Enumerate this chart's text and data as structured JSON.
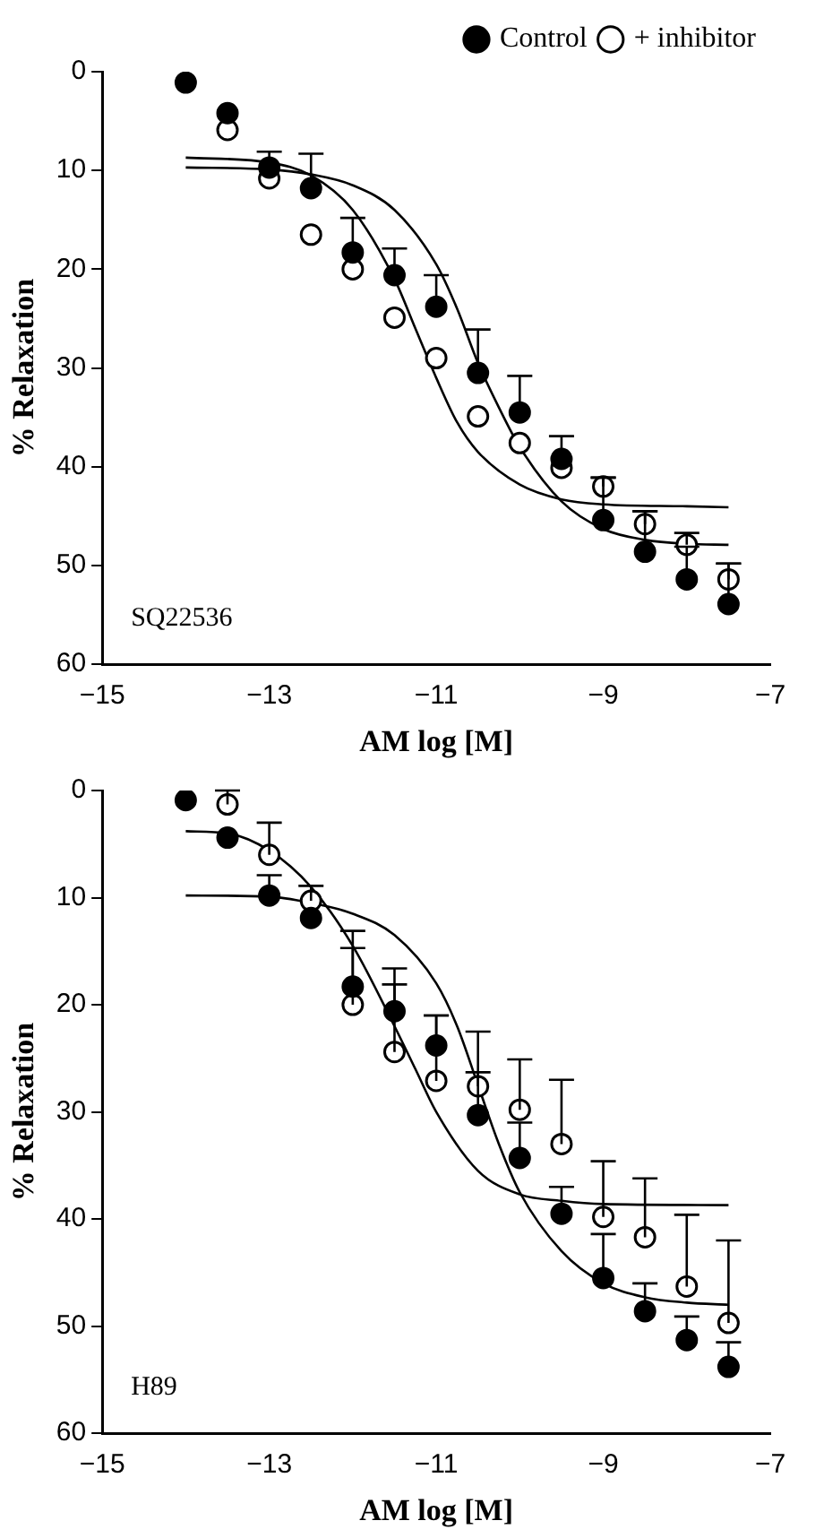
{
  "chart_data": [
    {
      "type": "scatter",
      "xlabel": "AM log [M]",
      "ylabel": "% Relaxation",
      "annotations": [
        "SQ22536"
      ],
      "xlim": [
        -15,
        -7
      ],
      "xticks": [
        -15,
        -13,
        -11,
        -9,
        -7
      ],
      "ylim": [
        60,
        0
      ],
      "yticks": [
        0,
        10,
        20,
        30,
        40,
        50,
        60
      ],
      "grid": false,
      "legend": "top right",
      "series": [
        {
          "name": "Control",
          "marker": "circle",
          "color": "#000000",
          "x": [
            -14,
            -13.5,
            -13,
            -12.5,
            -12,
            -11.5,
            -11,
            -10.5,
            -10,
            -9.5,
            -9,
            -8.5,
            -8,
            -7.5
          ],
          "values": [
            1.1,
            4.2,
            9.7,
            11.8,
            18.3,
            20.6,
            23.8,
            30.5,
            34.5,
            39.2,
            45.4,
            48.6,
            51.4,
            53.9
          ],
          "errors": [
            null,
            null,
            [
              8.1,
              9.7
            ],
            [
              8.3,
              11.8
            ],
            [
              14.8,
              18.3
            ],
            [
              17.9,
              20.6
            ],
            [
              20.6,
              23.8
            ],
            [
              26.1,
              30.5
            ],
            [
              30.8,
              34.5
            ],
            [
              36.9,
              39.2
            ],
            [
              41.1,
              45.4
            ],
            [
              44.5,
              48.6
            ],
            [
              48.1,
              51.4
            ],
            [
              49.8,
              53.9
            ]
          ]
        },
        {
          "name": "+ inhibitor",
          "marker": "circle",
          "color": "#ffffff",
          "x": [
            -13.5,
            -13,
            -12.5,
            -12,
            -11.5,
            -11,
            -10.5,
            -10,
            -9.5,
            -9,
            -8.5,
            -8,
            -7.5
          ],
          "values": [
            5.9,
            10.8,
            16.5,
            20,
            24.9,
            29,
            34.9,
            37.6,
            40.1,
            42,
            45.8,
            47.9,
            51.4
          ],
          "errors": [
            null,
            null,
            null,
            null,
            null,
            null,
            null,
            null,
            null,
            [
              41.1,
              42
            ],
            [
              44.5,
              45.8
            ],
            [
              46.7,
              47.9
            ],
            [
              49.8,
              51.4
            ]
          ]
        },
        {
          "type": "line",
          "color": "#000000",
          "x": [
            -14,
            -13,
            -12.5,
            -12,
            -11.5,
            -11,
            -10.75,
            -10.5,
            -10.25,
            -10,
            -9.5,
            -9,
            -8.5,
            -8,
            -7.5
          ],
          "values": [
            9.7,
            9.9,
            10.4,
            11.5,
            14,
            19.5,
            24,
            29.5,
            34,
            38,
            43.5,
            46.3,
            47.4,
            47.8,
            47.9
          ]
        },
        {
          "type": "line",
          "color": "#000000",
          "x": [
            -14,
            -13,
            -12.5,
            -12,
            -11.5,
            -11.25,
            -11,
            -10.75,
            -10.5,
            -10,
            -9.5,
            -9,
            -8,
            -7.5
          ],
          "values": [
            8.7,
            9.2,
            10.5,
            14,
            21,
            26,
            31,
            35.5,
            38.5,
            41.8,
            43.3,
            43.8,
            44,
            44.1
          ]
        }
      ]
    },
    {
      "type": "scatter",
      "xlabel": "AM log [M]",
      "ylabel": "% Relaxation",
      "annotations": [
        "H89"
      ],
      "xlim": [
        -15,
        -7
      ],
      "xticks": [
        -15,
        -13,
        -11,
        -9,
        -7
      ],
      "ylim": [
        60,
        0
      ],
      "yticks": [
        0,
        10,
        20,
        30,
        40,
        50,
        60
      ],
      "grid": false,
      "series": [
        {
          "marker": "circle",
          "color": "#000000",
          "x": [
            -14,
            -13.5,
            -13,
            -12.5,
            -12,
            -11.5,
            -11,
            -10.5,
            -10,
            -9.5,
            -9,
            -8.5,
            -8,
            -7.5
          ],
          "values": [
            0.9,
            4.4,
            9.8,
            11.9,
            18.3,
            20.6,
            23.8,
            30.3,
            34.3,
            39.5,
            45.5,
            48.6,
            51.3,
            53.8
          ],
          "errors": [
            null,
            null,
            [
              7.9,
              9.8
            ],
            null,
            [
              14.7,
              18.3
            ],
            [
              18.1,
              20.6
            ],
            [
              21,
              23.8
            ],
            [
              26.3,
              30.3
            ],
            [
              31,
              34.3
            ],
            [
              37,
              39.5
            ],
            [
              41.4,
              45.5
            ],
            [
              46,
              48.6
            ],
            [
              49.1,
              51.3
            ],
            [
              51.5,
              53.8
            ]
          ]
        },
        {
          "marker": "circle",
          "color": "#ffffff",
          "x": [
            -13.5,
            -13,
            -12.5,
            -12,
            -11.5,
            -11,
            -10.5,
            -10,
            -9.5,
            -9,
            -8.5,
            -8,
            -7.5
          ],
          "values": [
            1.3,
            6,
            10.3,
            20,
            24.4,
            27.1,
            27.6,
            29.8,
            33,
            39.8,
            41.7,
            46.3,
            49.7
          ],
          "errors": [
            [
              0,
              1.3
            ],
            [
              3,
              6
            ],
            [
              8.9,
              10.3
            ],
            [
              13.1,
              20
            ],
            [
              16.6,
              24.4
            ],
            [
              21,
              27.1
            ],
            [
              22.5,
              27.6
            ],
            [
              25.1,
              29.8
            ],
            [
              27,
              33
            ],
            [
              34.6,
              39.8
            ],
            [
              36.2,
              41.7
            ],
            [
              39.6,
              46.3
            ],
            [
              42,
              49.7
            ]
          ]
        },
        {
          "type": "line",
          "color": "#000000",
          "x": [
            -14,
            -13,
            -12.5,
            -12,
            -11.5,
            -11,
            -10.75,
            -10.5,
            -10.25,
            -10,
            -9.5,
            -9,
            -8.5,
            -8,
            -7.5
          ],
          "values": [
            9.8,
            9.9,
            10.5,
            11.5,
            13.5,
            18,
            22,
            27.5,
            33,
            37.5,
            43,
            46,
            47.3,
            47.8,
            48
          ]
        },
        {
          "type": "line",
          "color": "#000000",
          "x": [
            -14,
            -13.5,
            -13,
            -12.5,
            -12,
            -11.5,
            -11.25,
            -11,
            -10.5,
            -10,
            -9.5,
            -9,
            -7.5
          ],
          "values": [
            3.8,
            4,
            5.6,
            9,
            14.5,
            22,
            26,
            30,
            35.5,
            37.7,
            38.3,
            38.6,
            38.7
          ]
        }
      ]
    }
  ]
}
